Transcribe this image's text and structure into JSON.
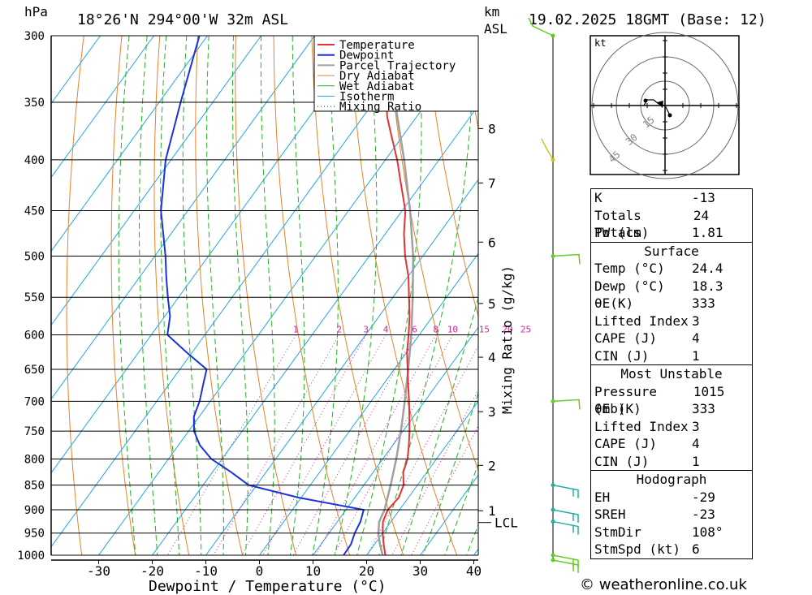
{
  "header": {
    "pressure_unit": "hPa",
    "location": "18°26'N 294°00'W 32m ASL",
    "height_unit": "km",
    "height_ref": "ASL",
    "datetime": "19.02.2025 18GMT (Base: 12)"
  },
  "colors": {
    "temperature": "#e83030",
    "dewpoint": "#1a32dc",
    "parcel": "#a0a0a0",
    "dry_adiabat": "#e8822a",
    "wet_adiabat": "#22b422",
    "isotherm": "#20a8e8",
    "mixing_ratio": "#cc2a9a",
    "wind_barb_green": "#66cc22",
    "wind_barb_teal": "#20b0a0"
  },
  "chart_data": {
    "type": "skew-t log-p diagram",
    "xlabel": "Dewpoint / Temperature (°C)",
    "ylabel": "hPa",
    "x_ticks": [
      "-30",
      "-20",
      "-10",
      "0",
      "10",
      "20",
      "30",
      "40"
    ],
    "pressure_levels": [
      300,
      350,
      400,
      450,
      500,
      550,
      600,
      650,
      700,
      750,
      800,
      850,
      900,
      950,
      1000
    ],
    "height_km_labels": [
      {
        "label": "8",
        "p": 372
      },
      {
        "label": "7",
        "p": 422
      },
      {
        "label": "6",
        "p": 484
      },
      {
        "label": "5",
        "p": 558
      },
      {
        "label": "4",
        "p": 632
      },
      {
        "label": "3",
        "p": 717
      },
      {
        "label": "2",
        "p": 812
      },
      {
        "label": "1",
        "p": 902
      },
      {
        "label": "LCL",
        "p": 927
      }
    ],
    "mixing_ratio_label": "Mixing Ratio (g/kg)",
    "mixing_ratio_lines": [
      "1",
      "2",
      "3",
      "4",
      "6",
      "8",
      "10",
      "15",
      "20",
      "25"
    ],
    "legend": [
      "Temperature",
      "Dewpoint",
      "Parcel Trajectory",
      "Dry Adiabat",
      "Wet Adiabat",
      "Isotherm",
      "Mixing Ratio"
    ],
    "legend_position": "top-right",
    "series": [
      {
        "name": "Temperature",
        "points": [
          [
            1015,
            24.4
          ],
          [
            1000,
            23.5
          ],
          [
            975,
            21.7
          ],
          [
            950,
            20.0
          ],
          [
            925,
            18.5
          ],
          [
            900,
            17.8
          ],
          [
            875,
            18.2
          ],
          [
            850,
            17.4
          ],
          [
            825,
            15.6
          ],
          [
            800,
            14.6
          ],
          [
            775,
            13.0
          ],
          [
            750,
            11.2
          ],
          [
            725,
            9.2
          ],
          [
            700,
            7.1
          ],
          [
            675,
            4.8
          ],
          [
            650,
            2.5
          ],
          [
            625,
            0.1
          ],
          [
            600,
            -2.0
          ],
          [
            575,
            -4.3
          ],
          [
            550,
            -7.0
          ],
          [
            525,
            -9.8
          ],
          [
            500,
            -13.3
          ],
          [
            475,
            -16.5
          ],
          [
            450,
            -19.4
          ],
          [
            425,
            -23.5
          ],
          [
            400,
            -27.8
          ],
          [
            375,
            -32.8
          ],
          [
            362,
            -35.5
          ],
          [
            300,
            -47.0
          ]
        ]
      },
      {
        "name": "Dewpoint",
        "points": [
          [
            1015,
            18.3
          ],
          [
            1000,
            15.7
          ],
          [
            975,
            15.6
          ],
          [
            950,
            14.8
          ],
          [
            925,
            14.3
          ],
          [
            900,
            13.3
          ],
          [
            875,
            -0.5
          ],
          [
            850,
            -11.5
          ],
          [
            825,
            -16.5
          ],
          [
            800,
            -22.0
          ],
          [
            775,
            -26.0
          ],
          [
            750,
            -29.0
          ],
          [
            725,
            -31.0
          ],
          [
            700,
            -32.0
          ],
          [
            675,
            -33.5
          ],
          [
            650,
            -35.0
          ],
          [
            625,
            -41.0
          ],
          [
            600,
            -47.0
          ],
          [
            575,
            -49.0
          ],
          [
            550,
            -52.0
          ],
          [
            525,
            -55.0
          ],
          [
            500,
            -58.0
          ],
          [
            450,
            -65.0
          ],
          [
            400,
            -71.0
          ],
          [
            350,
            -76.0
          ],
          [
            300,
            -81.5
          ]
        ]
      },
      {
        "name": "Parcel Trajectory",
        "points": [
          [
            1015,
            24.4
          ],
          [
            1000,
            23.0
          ],
          [
            975,
            21.0
          ],
          [
            950,
            19.2
          ],
          [
            925,
            17.8
          ],
          [
            900,
            17.2
          ],
          [
            850,
            15.0
          ],
          [
            800,
            12.5
          ],
          [
            750,
            9.6
          ],
          [
            700,
            6.3
          ],
          [
            650,
            2.6
          ],
          [
            600,
            -1.5
          ],
          [
            550,
            -6.3
          ],
          [
            500,
            -11.8
          ],
          [
            450,
            -18.5
          ],
          [
            400,
            -26.5
          ],
          [
            350,
            -36.0
          ],
          [
            320,
            -42.5
          ]
        ]
      }
    ],
    "wind_barbs": [
      {
        "p": 300,
        "color": "green"
      },
      {
        "p": 400,
        "color": "yellow"
      },
      {
        "p": 500,
        "color": "green"
      },
      {
        "p": 700,
        "color": "green"
      },
      {
        "p": 850,
        "color": "teal"
      },
      {
        "p": 900,
        "color": "teal"
      },
      {
        "p": 925,
        "color": "teal"
      },
      {
        "p": 1000,
        "color": "green"
      },
      {
        "p": 1013,
        "color": "green"
      }
    ],
    "hodograph": {
      "unit_label": "kt",
      "ring_labels": [
        "15",
        "30",
        "45"
      ]
    }
  },
  "indices": {
    "k": {
      "label": "K",
      "value": "-13"
    },
    "tt": {
      "label": "Totals Totals",
      "value": "24"
    },
    "pw": {
      "label": "PW (cm)",
      "value": "1.81"
    }
  },
  "surface": {
    "title": "Surface",
    "temp": {
      "label": "Temp (°C)",
      "value": "24.4"
    },
    "dewp": {
      "label": "Dewp (°C)",
      "value": "18.3"
    },
    "theta": {
      "label": "θE(K)",
      "value": "333"
    },
    "li": {
      "label": "Lifted Index",
      "value": "3"
    },
    "cape": {
      "label": "CAPE (J)",
      "value": "4"
    },
    "cin": {
      "label": "CIN (J)",
      "value": "1"
    }
  },
  "most_unstable": {
    "title": "Most Unstable",
    "pressure": {
      "label": "Pressure (mb)",
      "value": "1015"
    },
    "theta": {
      "label": "θE (K)",
      "value": "333"
    },
    "li": {
      "label": "Lifted Index",
      "value": "3"
    },
    "cape": {
      "label": "CAPE (J)",
      "value": "4"
    },
    "cin": {
      "label": "CIN (J)",
      "value": "1"
    }
  },
  "hodograph_stats": {
    "title": "Hodograph",
    "eh": {
      "label": "EH",
      "value": "-29"
    },
    "sreh": {
      "label": "SREH",
      "value": "-23"
    },
    "stmdir": {
      "label": "StmDir",
      "value": "108°"
    },
    "stmspd": {
      "label": "StmSpd (kt)",
      "value": "6"
    }
  },
  "footer": {
    "copyright": "© weatheronline.co.uk"
  }
}
